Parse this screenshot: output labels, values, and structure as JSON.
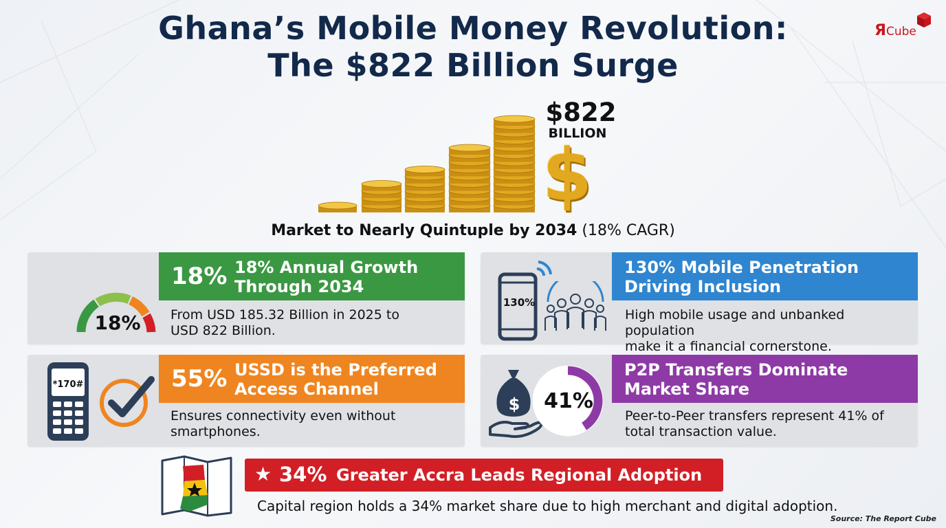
{
  "header": {
    "title_line1": "Ghana’s Mobile Money Revolution:",
    "title_line2": "The $822 Billion Surge"
  },
  "logo": {
    "r": "Я",
    "text": "Cube"
  },
  "hero": {
    "value": "$822",
    "unit": "BILLION",
    "symbol": "$"
  },
  "subtitle": {
    "bold": "Market to Nearly Quintuple by 2034",
    "normal": "(18% CAGR)"
  },
  "cards": {
    "growth": {
      "gauge_value": "18%",
      "pct": "18%",
      "heading_line1": "18% Annual Growth",
      "heading_line2": "Through 2034",
      "body_line1": "From USD 185.32 Billion in 2025 to",
      "body_line2": "USD 822 Billion."
    },
    "mobile": {
      "phone_value": "130%",
      "heading_line1": "130% Mobile Penetration",
      "heading_line2": "Driving Inclusion",
      "body_line1": "High mobile usage and unbanked population",
      "body_line2": "make it a financial cornerstone."
    },
    "ussd": {
      "phone_code": "*170#",
      "pct": "55%",
      "heading_line1": "USSD is the Preferred",
      "heading_line2": "Access Channel",
      "body_line1": "Ensures connectivity even without",
      "body_line2": "smartphones."
    },
    "p2p": {
      "donut_value": "41%",
      "donut_fraction": 0.41,
      "bag_symbol": "$",
      "heading_line1": "P2P Transfers Dominate",
      "heading_line2": "Market Share",
      "body_line1": "Peer-to-Peer transfers represent 41% of",
      "body_line2": "total transaction value."
    },
    "accra": {
      "star": "★",
      "pct": "34%",
      "heading": "Greater Accra Leads Regional Adoption",
      "body": "Capital region holds a 34% market share due to high merchant and digital adoption."
    }
  },
  "colors": {
    "title": "#12294a",
    "green": "#3a9842",
    "blue": "#2f85cf",
    "orange": "#ef8520",
    "purple": "#8e3aa6",
    "red": "#d21f26",
    "gold": "#e2a81f",
    "navy_icon": "#2c3e58"
  },
  "icons": {
    "gauge": "speedometer-gauge-icon",
    "phone_signal": "smartphone-signal-icon",
    "people": "people-group-icon",
    "feature_phone": "feature-phone-icon",
    "checkmark": "check-circle-icon",
    "money_bag": "money-bag-hand-icon",
    "map": "ghana-map-icon",
    "coins": "coin-stacks-icon"
  },
  "footer": {
    "source": "Source: The Report Cube"
  }
}
